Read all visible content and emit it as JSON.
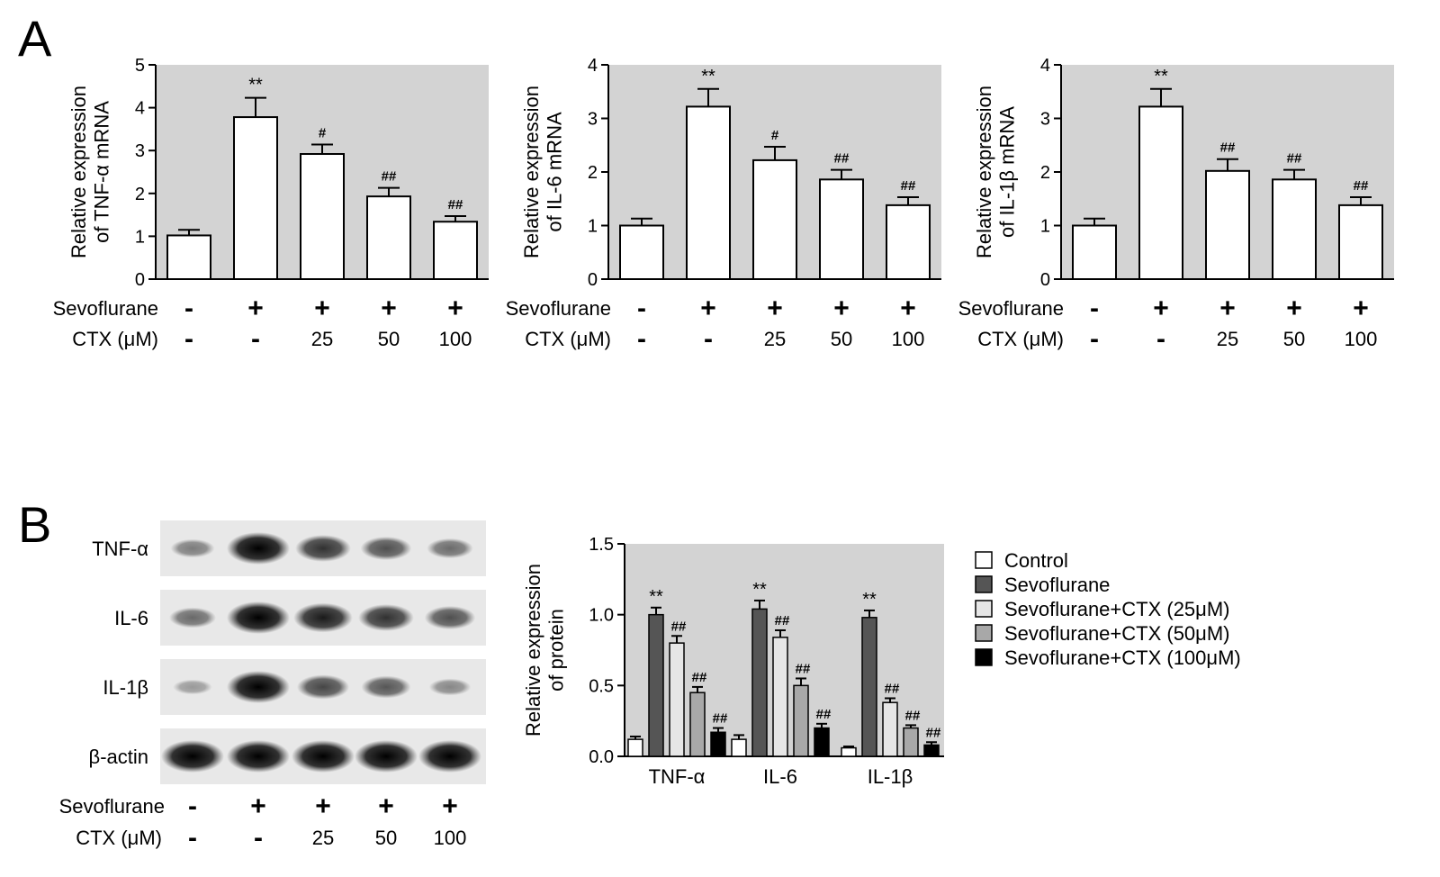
{
  "panels": {
    "a": "A",
    "b": "B"
  },
  "colors": {
    "plot_bg": "#d3d3d3",
    "bar_stroke": "#000000",
    "blot_bg": "#e8e8e8"
  },
  "conditions": {
    "sevoflurane_label": "Sevoflurane",
    "ctx_label": "CTX (μM)",
    "sevoflurane": [
      "-",
      "+",
      "+",
      "+",
      "+"
    ],
    "ctx": [
      "-",
      "-",
      "25",
      "50",
      "100"
    ]
  },
  "chart_data": [
    {
      "type": "bar",
      "ylabel": [
        "Relative expression",
        "of TNF-α mRNA"
      ],
      "ylim": [
        0,
        5
      ],
      "yticks": [
        0,
        1,
        2,
        3,
        4,
        5
      ],
      "values": [
        1.02,
        3.78,
        2.92,
        1.93,
        1.34
      ],
      "errors": [
        0.13,
        0.45,
        0.22,
        0.2,
        0.13
      ],
      "significance": [
        "",
        "**",
        "#",
        "##",
        "##"
      ],
      "grid": false
    },
    {
      "type": "bar",
      "ylabel": [
        "Relative expression",
        "of IL-6 mRNA"
      ],
      "ylim": [
        0,
        4
      ],
      "yticks": [
        0,
        1,
        2,
        3,
        4
      ],
      "values": [
        1.0,
        3.22,
        2.22,
        1.86,
        1.38
      ],
      "errors": [
        0.13,
        0.33,
        0.25,
        0.18,
        0.15
      ],
      "significance": [
        "",
        "**",
        "#",
        "##",
        "##"
      ],
      "grid": false
    },
    {
      "type": "bar",
      "ylabel": [
        "Relative expression",
        "of IL-1β mRNA"
      ],
      "ylim": [
        0,
        4
      ],
      "yticks": [
        0,
        1,
        2,
        3,
        4
      ],
      "values": [
        1.0,
        3.22,
        2.02,
        1.86,
        1.38
      ],
      "errors": [
        0.13,
        0.33,
        0.22,
        0.18,
        0.15
      ],
      "significance": [
        "",
        "**",
        "##",
        "##",
        "##"
      ],
      "grid": false
    },
    {
      "type": "bar",
      "ylabel": [
        "Relative expression",
        "of protein"
      ],
      "ylim": [
        0,
        1.5
      ],
      "yticks": [
        "0.0",
        "0.5",
        "1.0",
        "1.5"
      ],
      "categories": [
        "TNF-α",
        "IL-6",
        "IL-1β"
      ],
      "series": [
        {
          "name": "Control",
          "color": "#ffffff",
          "values": [
            0.12,
            0.12,
            0.06
          ],
          "errors": [
            0.02,
            0.03,
            0.01
          ],
          "significance": [
            "",
            "",
            ""
          ]
        },
        {
          "name": "Sevoflurane",
          "color": "#555555",
          "values": [
            1.0,
            1.04,
            0.98
          ],
          "errors": [
            0.05,
            0.06,
            0.05
          ],
          "significance": [
            "**",
            "**",
            "**"
          ]
        },
        {
          "name": "Sevoflurane+CTX (25μM)",
          "color": "#e6e6e6",
          "values": [
            0.8,
            0.84,
            0.38
          ],
          "errors": [
            0.05,
            0.05,
            0.03
          ],
          "significance": [
            "##",
            "##",
            "##"
          ]
        },
        {
          "name": "Sevoflurane+CTX (50μM)",
          "color": "#a8a8a8",
          "values": [
            0.45,
            0.5,
            0.2
          ],
          "errors": [
            0.04,
            0.05,
            0.02
          ],
          "significance": [
            "##",
            "##",
            "##"
          ]
        },
        {
          "name": "Sevoflurane+CTX (100μM)",
          "color": "#000000",
          "values": [
            0.17,
            0.2,
            0.08
          ],
          "errors": [
            0.03,
            0.03,
            0.02
          ],
          "significance": [
            "##",
            "##",
            "##"
          ]
        }
      ],
      "legend": "right",
      "grid": false
    }
  ],
  "western_blot": {
    "rows": [
      {
        "label": "TNF-α",
        "intensities": [
          0.3,
          1.0,
          0.72,
          0.55,
          0.38
        ]
      },
      {
        "label": "IL-6",
        "intensities": [
          0.4,
          1.0,
          0.85,
          0.72,
          0.55
        ]
      },
      {
        "label": "IL-1β",
        "intensities": [
          0.12,
          1.0,
          0.6,
          0.5,
          0.22
        ]
      },
      {
        "label": "β-actin",
        "intensities": [
          1.0,
          1.0,
          1.0,
          1.0,
          1.0
        ]
      }
    ]
  }
}
